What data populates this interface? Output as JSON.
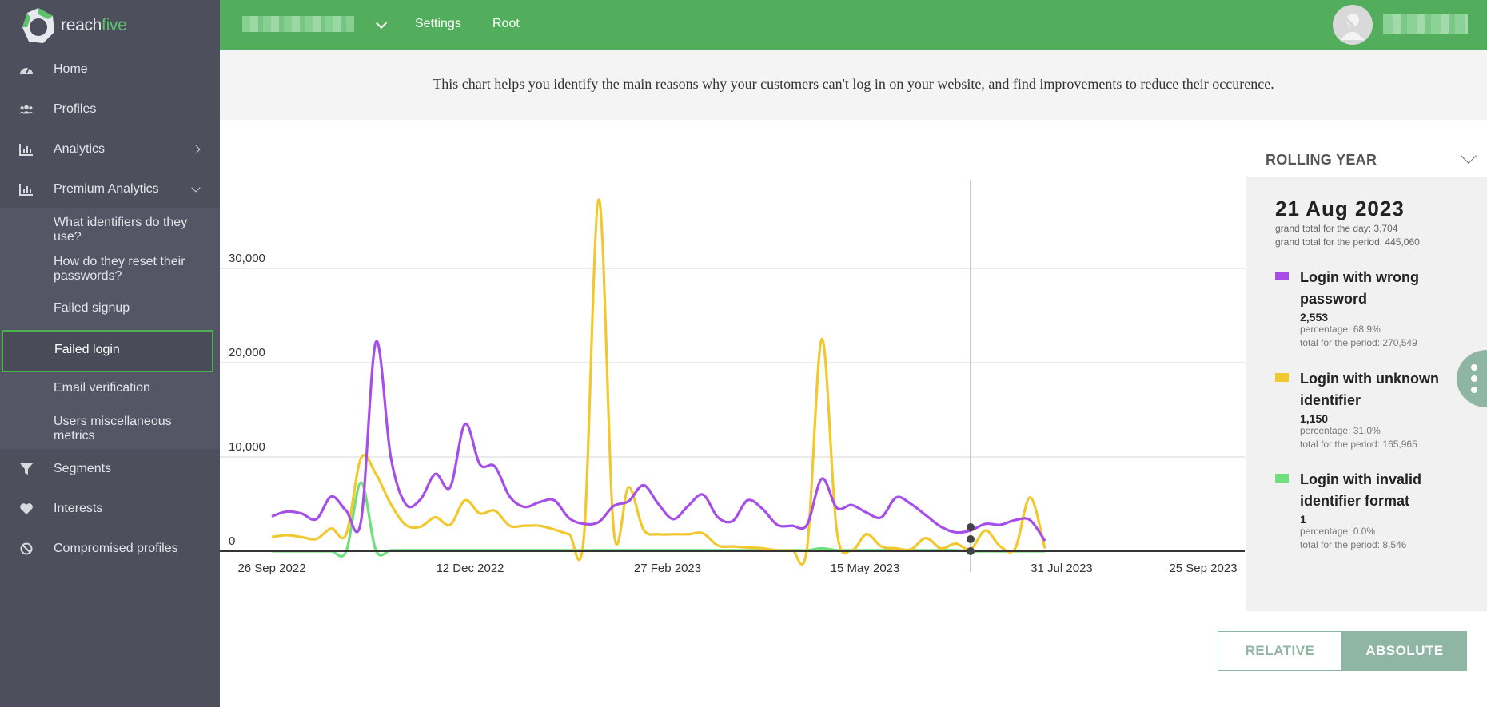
{
  "brand": {
    "logo_text_1": "reach",
    "logo_text_2": "five"
  },
  "colors": {
    "sidebar": "#4e4f5d",
    "topbar": "#52ad5c",
    "accent": "#4caf50",
    "series_wrong_password": "#a64ee8",
    "series_unknown_identifier": "#f2c82f",
    "series_invalid_format": "#6fe07c",
    "toggle": "#8fb5a4"
  },
  "sidebar": {
    "items": [
      {
        "label": "Home",
        "icon": "dashboard-icon"
      },
      {
        "label": "Profiles",
        "icon": "users-icon"
      },
      {
        "label": "Analytics",
        "icon": "bar-chart-icon"
      },
      {
        "label": "Premium Analytics",
        "icon": "bar-chart-icon"
      }
    ],
    "submenu": [
      "What identifiers do they use?",
      "How do they reset their passwords?",
      "Failed signup",
      "Failed login",
      "Email verification",
      "Users miscellaneous metrics"
    ],
    "bottom_items": [
      {
        "label": "Segments",
        "icon": "filter-icon"
      },
      {
        "label": "Interests",
        "icon": "heart-icon"
      },
      {
        "label": "Compromised profiles",
        "icon": "ban-icon"
      }
    ]
  },
  "topbar": {
    "settings": "Settings",
    "root": "Root"
  },
  "banner": {
    "text": "This chart helps you identify the main reasons why your customers can't log in on your website, and find improvements to reduce their occurence."
  },
  "period": {
    "label": "ROLLING YEAR"
  },
  "legend": {
    "date": "21 Aug 2023",
    "day_total": "grand total for the day: 3,704",
    "period_total": "grand total for the period: 445,060",
    "entries": [
      {
        "name": "Login with wrong password",
        "value": "2,553",
        "percentage": "percentage: 68.9%",
        "total": "total for the period: 270,549"
      },
      {
        "name": "Login with unknown identifier",
        "value": "1,150",
        "percentage": "percentage: 31.0%",
        "total": "total for the period: 165,965"
      },
      {
        "name": "Login with invalid identifier format",
        "value": "1",
        "percentage": "percentage: 0.0%",
        "total": "total for the period: 8,546"
      }
    ]
  },
  "toggle": {
    "relative": "RELATIVE",
    "absolute": "ABSOLUTE",
    "active": "ABSOLUTE"
  },
  "chart_data": {
    "type": "line",
    "x_labels": [
      "26 Sep 2022",
      "12 Dec 2022",
      "27 Feb 2023",
      "15 May 2023",
      "31 Jul 2023",
      "25 Sep 2023"
    ],
    "y_ticks": [
      "0",
      "10,000",
      "20,000",
      "30,000"
    ],
    "ylim": [
      0,
      40000
    ],
    "grid": "horizontal",
    "hover_x": "21 Aug 2023",
    "series": [
      {
        "name": "Login with wrong password",
        "color": "#a64ee8",
        "x": [
          "2022-09-26",
          "2022-10-03",
          "2022-10-10",
          "2022-10-17",
          "2022-10-24",
          "2022-10-31",
          "2022-11-07",
          "2022-11-14",
          "2022-11-21",
          "2022-11-28",
          "2022-12-05",
          "2022-12-12",
          "2022-12-19",
          "2022-12-26",
          "2023-01-02",
          "2023-01-09",
          "2023-01-16",
          "2023-01-23",
          "2023-01-30",
          "2023-02-06",
          "2023-02-13",
          "2023-02-20",
          "2023-02-27",
          "2023-03-06",
          "2023-03-13",
          "2023-03-20",
          "2023-03-27",
          "2023-04-03",
          "2023-04-10",
          "2023-04-17",
          "2023-04-24",
          "2023-05-01",
          "2023-05-08",
          "2023-05-15",
          "2023-05-22",
          "2023-05-29",
          "2023-06-05",
          "2023-06-12",
          "2023-06-19",
          "2023-06-26",
          "2023-07-03",
          "2023-07-10",
          "2023-07-17",
          "2023-07-24",
          "2023-07-31",
          "2023-08-07",
          "2023-08-14",
          "2023-08-21",
          "2023-08-28",
          "2023-09-04",
          "2023-09-11",
          "2023-09-18",
          "2023-09-25"
        ],
        "y": [
          3700,
          4200,
          4000,
          3400,
          5800,
          4300,
          3200,
          22200,
          10000,
          5000,
          5500,
          8200,
          6800,
          13500,
          9200,
          9000,
          5800,
          4700,
          5200,
          5400,
          3500,
          2900,
          3100,
          4800,
          5300,
          7000,
          5000,
          3400,
          4800,
          6000,
          3600,
          3200,
          5400,
          4500,
          2800,
          2700,
          2800,
          7700,
          4600,
          4900,
          4100,
          3600,
          5700,
          5000,
          3800,
          2600,
          2000,
          2200,
          2900,
          2800,
          3300,
          3300,
          1100
        ]
      },
      {
        "name": "Login with unknown identifier",
        "color": "#f2c82f",
        "x": [
          "2022-09-26",
          "2022-10-03",
          "2022-10-10",
          "2022-10-17",
          "2022-10-24",
          "2022-10-31",
          "2022-11-07",
          "2022-11-14",
          "2022-11-21",
          "2022-11-28",
          "2022-12-05",
          "2022-12-12",
          "2022-12-19",
          "2022-12-26",
          "2023-01-02",
          "2023-01-09",
          "2023-01-16",
          "2023-01-23",
          "2023-01-30",
          "2023-02-06",
          "2023-02-13",
          "2023-02-20",
          "2023-02-27",
          "2023-03-06",
          "2023-03-13",
          "2023-03-20",
          "2023-03-27",
          "2023-04-03",
          "2023-04-10",
          "2023-04-17",
          "2023-04-24",
          "2023-05-01",
          "2023-05-08",
          "2023-05-15",
          "2023-05-22",
          "2023-05-29",
          "2023-06-05",
          "2023-06-12",
          "2023-06-19",
          "2023-06-26",
          "2023-07-03",
          "2023-07-10",
          "2023-07-17",
          "2023-07-24",
          "2023-07-31",
          "2023-08-07",
          "2023-08-14",
          "2023-08-21",
          "2023-08-28",
          "2023-09-04",
          "2023-09-11",
          "2023-09-18",
          "2023-09-25"
        ],
        "y": [
          1500,
          1700,
          1500,
          1300,
          2400,
          1800,
          9900,
          8200,
          5000,
          2800,
          2600,
          3600,
          2800,
          5400,
          4000,
          4300,
          2700,
          2700,
          2700,
          2300,
          1800,
          1700,
          37300,
          2200,
          6800,
          2300,
          1800,
          1800,
          1800,
          1900,
          600,
          500,
          400,
          300,
          100,
          100,
          300,
          22500,
          2200,
          100,
          1800,
          500,
          300,
          200,
          1400,
          300,
          800,
          200,
          2200,
          500,
          300,
          5700,
          300
        ]
      },
      {
        "name": "Login with invalid identifier format",
        "color": "#6fe07c",
        "x": [
          "2022-09-26",
          "2022-10-03",
          "2022-10-10",
          "2022-10-17",
          "2022-10-24",
          "2022-10-31",
          "2022-11-07",
          "2022-11-14",
          "2022-11-21",
          "2022-11-28",
          "2022-12-05",
          "2022-12-12",
          "2022-12-19",
          "2022-12-26",
          "2023-01-02",
          "2023-01-09",
          "2023-01-16",
          "2023-01-23",
          "2023-01-30",
          "2023-02-06",
          "2023-02-13",
          "2023-02-20",
          "2023-02-27",
          "2023-03-06",
          "2023-03-13",
          "2023-03-20",
          "2023-03-27",
          "2023-04-03",
          "2023-04-10",
          "2023-04-17",
          "2023-04-24",
          "2023-05-01",
          "2023-05-08",
          "2023-05-15",
          "2023-05-22",
          "2023-05-29",
          "2023-06-05",
          "2023-06-12",
          "2023-06-19",
          "2023-06-26",
          "2023-07-03",
          "2023-07-10",
          "2023-07-17",
          "2023-07-24",
          "2023-07-31",
          "2023-08-07",
          "2023-08-14",
          "2023-08-21",
          "2023-08-28",
          "2023-09-04",
          "2023-09-11",
          "2023-09-18",
          "2023-09-25"
        ],
        "y": [
          0,
          0,
          0,
          0,
          0,
          0,
          7300,
          100,
          100,
          100,
          100,
          100,
          100,
          100,
          100,
          100,
          100,
          100,
          100,
          100,
          100,
          100,
          100,
          100,
          100,
          100,
          100,
          100,
          100,
          100,
          100,
          100,
          100,
          100,
          100,
          100,
          100,
          300,
          100,
          100,
          100,
          100,
          100,
          100,
          100,
          100,
          100,
          0,
          0,
          0,
          0,
          0,
          0
        ]
      }
    ]
  }
}
